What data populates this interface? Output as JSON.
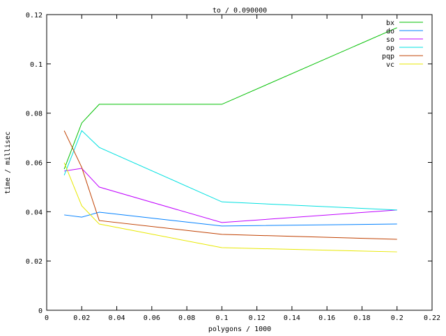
{
  "chart_data": {
    "type": "line",
    "title": "to / 0.090000",
    "xlabel": "polygons / 1000",
    "ylabel": "time / millisec",
    "xlim": [
      0,
      0.22
    ],
    "ylim": [
      0,
      0.12
    ],
    "xticks": [
      "0",
      "0.02",
      "0.04",
      "0.06",
      "0.08",
      "0.1",
      "0.12",
      "0.14",
      "0.16",
      "0.18",
      "0.2",
      "0.22"
    ],
    "yticks": [
      "0",
      "0.02",
      "0.04",
      "0.06",
      "0.08",
      "0.1",
      "0.12"
    ],
    "legend_position": "top-right",
    "grid": false,
    "x": [
      0.01,
      0.02,
      0.03,
      0.1,
      0.2
    ],
    "series": [
      {
        "name": "bx",
        "color": "#00c000",
        "values": [
          0.0573,
          0.076,
          0.0836,
          0.0836,
          0.1147
        ]
      },
      {
        "name": "do",
        "color": "#0080ff",
        "values": [
          0.0387,
          0.0378,
          0.0398,
          0.0342,
          0.035
        ]
      },
      {
        "name": "so",
        "color": "#c000ff",
        "values": [
          0.0565,
          0.0576,
          0.05,
          0.0356,
          0.0407
        ]
      },
      {
        "name": "op",
        "color": "#00e0e0",
        "values": [
          0.0548,
          0.0729,
          0.0661,
          0.044,
          0.0407
        ]
      },
      {
        "name": "pqp",
        "color": "#c04000",
        "values": [
          0.0729,
          0.058,
          0.0364,
          0.0308,
          0.0288
        ]
      },
      {
        "name": "vc",
        "color": "#e8e800",
        "values": [
          0.0599,
          0.0424,
          0.035,
          0.0254,
          0.0237
        ]
      }
    ]
  }
}
